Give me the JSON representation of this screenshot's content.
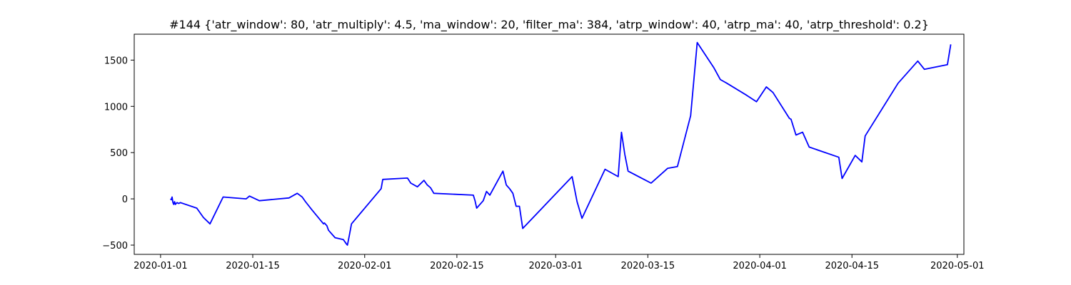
{
  "chart_data": {
    "type": "line",
    "title": "#144 {'atr_window': 80, 'atr_multiply': 4.5, 'ma_window': 20, 'filter_ma': 384, 'atrp_window': 40, 'atrp_ma': 40, 'atrp_threshold': 0.2}",
    "xlabel": "",
    "ylabel": "",
    "xlim": [
      "2019-12-28",
      "2020-05-02"
    ],
    "ylim": [
      -600,
      1780
    ],
    "x_ticks": [
      "2020-01-01",
      "2020-01-15",
      "2020-02-01",
      "2020-02-15",
      "2020-03-01",
      "2020-03-15",
      "2020-04-01",
      "2020-04-15",
      "2020-05-01"
    ],
    "y_ticks": [
      -500,
      0,
      500,
      1000,
      1500
    ],
    "grid": false,
    "line_color": "#0000ff",
    "series": [
      {
        "x": [
          "2020-01-02T12:00",
          "2020-01-02T15:00",
          "2020-01-02T18:00",
          "2020-01-02T21:00",
          "2020-01-03T00:00",
          "2020-01-03T03:00",
          "2020-01-03T06:00",
          "2020-01-03T12:00",
          "2020-01-03T18:00",
          "2020-01-04T00:00",
          "2020-01-06T12:00",
          "2020-01-07T12:00",
          "2020-01-08T12:00",
          "2020-01-10T12:00",
          "2020-01-14T00:00",
          "2020-01-14T12:00",
          "2020-01-16T00:00",
          "2020-01-20T12:00",
          "2020-01-21T18:00",
          "2020-01-22T12:00",
          "2020-01-23T00:00",
          "2020-01-24T00:00",
          "2020-01-25T18:00",
          "2020-01-25T21:00",
          "2020-01-26T06:00",
          "2020-01-26T12:00",
          "2020-01-27T12:00",
          "2020-01-28T18:00",
          "2020-01-29T06:00",
          "2020-01-29T09:00",
          "2020-01-29T15:00",
          "2020-01-30T00:00",
          "2020-02-03T12:00",
          "2020-02-03T18:00",
          "2020-02-07T12:00",
          "2020-02-08T00:00",
          "2020-02-09T00:00",
          "2020-02-10T00:00",
          "2020-02-10T12:00",
          "2020-02-11T00:00",
          "2020-02-11T12:00",
          "2020-02-17T12:00",
          "2020-02-17T18:00",
          "2020-02-18T00:00",
          "2020-02-19T00:00",
          "2020-02-19T12:00",
          "2020-02-20T00:00",
          "2020-02-22T00:00",
          "2020-02-22T12:00",
          "2020-02-23T00:00",
          "2020-02-23T12:00",
          "2020-02-24T00:00",
          "2020-02-24T12:00",
          "2020-02-25T00:00",
          "2020-03-03T12:00",
          "2020-03-04T06:00",
          "2020-03-05T00:00",
          "2020-03-08T12:00",
          "2020-03-10T12:00",
          "2020-03-11T00:00",
          "2020-03-11T12:00",
          "2020-03-12T00:00",
          "2020-03-15T12:00",
          "2020-03-18T00:00",
          "2020-03-19T12:00",
          "2020-03-21T12:00",
          "2020-03-22T12:00",
          "2020-03-25T00:00",
          "2020-03-26T00:00",
          "2020-03-27T00:00",
          "2020-03-30T00:00",
          "2020-03-31T12:00",
          "2020-04-02T00:00",
          "2020-04-03T00:00",
          "2020-04-05T12:00",
          "2020-04-05T18:00",
          "2020-04-06T12:00",
          "2020-04-07T12:00",
          "2020-04-08T12:00",
          "2020-04-13T00:00",
          "2020-04-13T12:00",
          "2020-04-15T12:00",
          "2020-04-16T12:00",
          "2020-04-17T00:00",
          "2020-04-22T00:00",
          "2020-04-25T00:00",
          "2020-04-26T00:00",
          "2020-04-29T12:00",
          "2020-04-30T00:00"
        ],
        "y": [
          0,
          -10,
          20,
          -40,
          -60,
          -30,
          -60,
          -40,
          -50,
          -40,
          -100,
          -200,
          -270,
          20,
          0,
          30,
          -20,
          10,
          60,
          20,
          -30,
          -120,
          -270,
          -260,
          -290,
          -340,
          -420,
          -440,
          -490,
          -500,
          -410,
          -270,
          110,
          210,
          225,
          170,
          130,
          200,
          150,
          120,
          60,
          40,
          -20,
          -100,
          -20,
          80,
          40,
          300,
          150,
          110,
          60,
          -80,
          -80,
          -320,
          240,
          -30,
          -210,
          320,
          240,
          720,
          480,
          300,
          170,
          330,
          350,
          900,
          1690,
          1420,
          1290,
          1250,
          1120,
          1050,
          1210,
          1150,
          870,
          860,
          690,
          720,
          560,
          450,
          220,
          470,
          400,
          680,
          1250,
          1490,
          1400,
          1450,
          1670
        ]
      }
    ]
  }
}
